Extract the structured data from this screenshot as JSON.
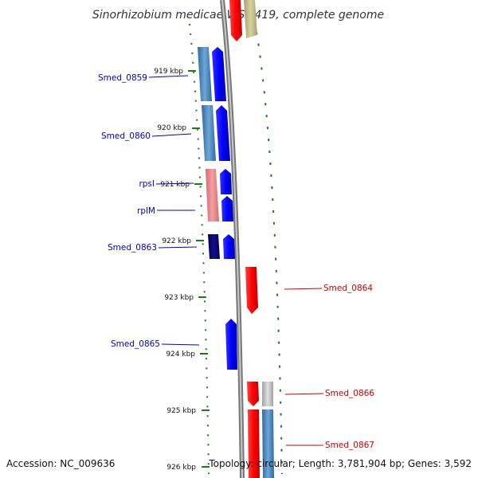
{
  "title": "Sinorhizobium medicae WSM419, complete genome",
  "colors": {
    "forward_cds": "#0000ff",
    "reverse_cds": "#ff0000",
    "left_label": "#0000cc",
    "right_label": "#cc0000",
    "tick_green": "#1a7a1a",
    "backbone": "#888888"
  },
  "kbp_labels": [
    "919 kbp",
    "920 kbp",
    "921 kbp",
    "922 kbp",
    "923 kbp",
    "924 kbp",
    "925 kbp",
    "926 kbp"
  ],
  "left_genes": [
    "Smed_0859",
    "Smed_0860",
    "rpsI",
    "rplM",
    "Smed_0863",
    "Smed_0865"
  ],
  "right_genes": [
    "Smed_0864",
    "Smed_0866",
    "Smed_0867"
  ],
  "footer": {
    "accession": "Accession: NC_009636",
    "topology": "Topology: circular; Length: 3,781,904 bp; Genes: 3,592"
  }
}
